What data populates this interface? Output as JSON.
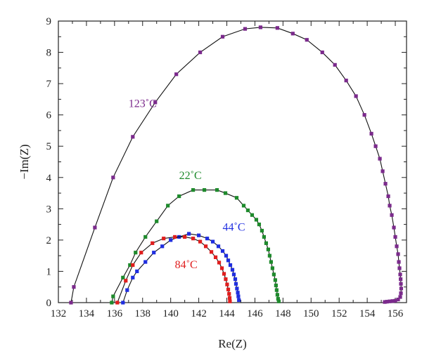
{
  "chart_data": {
    "type": "scatter",
    "title": "",
    "xlabel": "Re(Z)",
    "ylabel": "−Im(Z)",
    "xlim": [
      132,
      156.8
    ],
    "ylim": [
      0,
      9
    ],
    "xticks": [
      132,
      134,
      136,
      138,
      140,
      142,
      144,
      146,
      148,
      150,
      152,
      154,
      156
    ],
    "yticks": [
      0,
      1,
      2,
      3,
      4,
      5,
      6,
      7,
      8,
      9
    ],
    "grid": false,
    "legend": "none",
    "series": [
      {
        "name": "123˚C",
        "color": "#7b2a8c",
        "points": [
          [
            132.9,
            0
          ],
          [
            133.1,
            0.5
          ],
          [
            134.6,
            2.4
          ],
          [
            135.9,
            4.0
          ],
          [
            137.3,
            5.3
          ],
          [
            138.9,
            6.4
          ],
          [
            140.4,
            7.3
          ],
          [
            142.1,
            8.0
          ],
          [
            143.7,
            8.5
          ],
          [
            145.3,
            8.75
          ],
          [
            146.4,
            8.8
          ],
          [
            147.6,
            8.78
          ],
          [
            148.7,
            8.6
          ],
          [
            149.7,
            8.4
          ],
          [
            150.8,
            8.0
          ],
          [
            151.7,
            7.6
          ],
          [
            152.5,
            7.1
          ],
          [
            153.2,
            6.6
          ],
          [
            153.8,
            6.0
          ],
          [
            154.3,
            5.4
          ],
          [
            154.6,
            5.0
          ],
          [
            154.9,
            4.6
          ],
          [
            155.1,
            4.2
          ],
          [
            155.3,
            3.8
          ],
          [
            155.5,
            3.4
          ],
          [
            155.6,
            3.1
          ],
          [
            155.75,
            2.8
          ],
          [
            155.9,
            2.4
          ],
          [
            156.0,
            2.1
          ],
          [
            156.1,
            1.8
          ],
          [
            156.2,
            1.55
          ],
          [
            156.25,
            1.3
          ],
          [
            156.3,
            1.1
          ],
          [
            156.35,
            0.9
          ],
          [
            156.38,
            0.75
          ],
          [
            156.4,
            0.6
          ],
          [
            156.42,
            0.45
          ],
          [
            156.4,
            0.3
          ],
          [
            156.35,
            0.18
          ],
          [
            156.2,
            0.1
          ],
          [
            156.0,
            0.06
          ],
          [
            155.8,
            0.05
          ],
          [
            155.6,
            0.04
          ],
          [
            155.4,
            0.03
          ],
          [
            155.25,
            0.02
          ]
        ]
      },
      {
        "name": "22˚C",
        "color": "#1e8a2c",
        "points": [
          [
            135.8,
            0
          ],
          [
            135.9,
            0.2
          ],
          [
            136.6,
            0.8
          ],
          [
            137.1,
            1.2
          ],
          [
            137.5,
            1.6
          ],
          [
            138.2,
            2.1
          ],
          [
            139.0,
            2.6
          ],
          [
            139.8,
            3.1
          ],
          [
            140.6,
            3.4
          ],
          [
            141.6,
            3.6
          ],
          [
            142.4,
            3.6
          ],
          [
            143.3,
            3.6
          ],
          [
            143.9,
            3.5
          ],
          [
            144.7,
            3.35
          ],
          [
            145.2,
            3.1
          ],
          [
            145.5,
            2.95
          ],
          [
            145.8,
            2.8
          ],
          [
            146.1,
            2.65
          ],
          [
            146.3,
            2.5
          ],
          [
            146.5,
            2.3
          ],
          [
            146.65,
            2.1
          ],
          [
            146.8,
            1.9
          ],
          [
            146.95,
            1.7
          ],
          [
            147.05,
            1.5
          ],
          [
            147.15,
            1.3
          ],
          [
            147.25,
            1.1
          ],
          [
            147.35,
            0.9
          ],
          [
            147.45,
            0.72
          ],
          [
            147.5,
            0.55
          ],
          [
            147.55,
            0.4
          ],
          [
            147.6,
            0.25
          ],
          [
            147.65,
            0.12
          ],
          [
            147.7,
            0.04
          ]
        ]
      },
      {
        "name": "44˚C",
        "color": "#1f2ee0",
        "points": [
          [
            136.6,
            0
          ],
          [
            136.9,
            0.4
          ],
          [
            137.3,
            0.8
          ],
          [
            137.6,
            1.0
          ],
          [
            138.2,
            1.3
          ],
          [
            138.8,
            1.6
          ],
          [
            139.4,
            1.8
          ],
          [
            140.0,
            2.0
          ],
          [
            140.6,
            2.1
          ],
          [
            141.3,
            2.2
          ],
          [
            142.0,
            2.15
          ],
          [
            142.6,
            2.05
          ],
          [
            143.0,
            1.95
          ],
          [
            143.4,
            1.8
          ],
          [
            143.7,
            1.65
          ],
          [
            143.95,
            1.5
          ],
          [
            144.1,
            1.35
          ],
          [
            144.25,
            1.2
          ],
          [
            144.4,
            1.05
          ],
          [
            144.5,
            0.9
          ],
          [
            144.6,
            0.75
          ],
          [
            144.65,
            0.6
          ],
          [
            144.72,
            0.45
          ],
          [
            144.78,
            0.32
          ],
          [
            144.82,
            0.2
          ],
          [
            144.86,
            0.08
          ]
        ]
      },
      {
        "name": "84˚C",
        "color": "#e01e1e",
        "points": [
          [
            136.2,
            0
          ],
          [
            136.8,
            0.7
          ],
          [
            137.3,
            1.2
          ],
          [
            137.9,
            1.6
          ],
          [
            138.7,
            1.9
          ],
          [
            139.5,
            2.05
          ],
          [
            140.3,
            2.1
          ],
          [
            141.0,
            2.1
          ],
          [
            141.6,
            2.05
          ],
          [
            142.1,
            1.95
          ],
          [
            142.5,
            1.8
          ],
          [
            142.9,
            1.62
          ],
          [
            143.2,
            1.45
          ],
          [
            143.45,
            1.28
          ],
          [
            143.65,
            1.1
          ],
          [
            143.8,
            0.92
          ],
          [
            143.92,
            0.75
          ],
          [
            144.02,
            0.58
          ],
          [
            144.1,
            0.42
          ],
          [
            144.16,
            0.28
          ],
          [
            144.2,
            0.15
          ],
          [
            144.22,
            0.04
          ]
        ]
      }
    ],
    "labels": [
      {
        "text": "123˚C",
        "x": 137.0,
        "y": 6.25,
        "color": "#7b2a8c"
      },
      {
        "text": "22˚C",
        "x": 140.6,
        "y": 3.95,
        "color": "#1e8a2c"
      },
      {
        "text": "44˚C",
        "x": 143.7,
        "y": 2.3,
        "color": "#1f2ee0"
      },
      {
        "text": "84˚C",
        "x": 140.3,
        "y": 1.1,
        "color": "#e01e1e"
      }
    ]
  }
}
